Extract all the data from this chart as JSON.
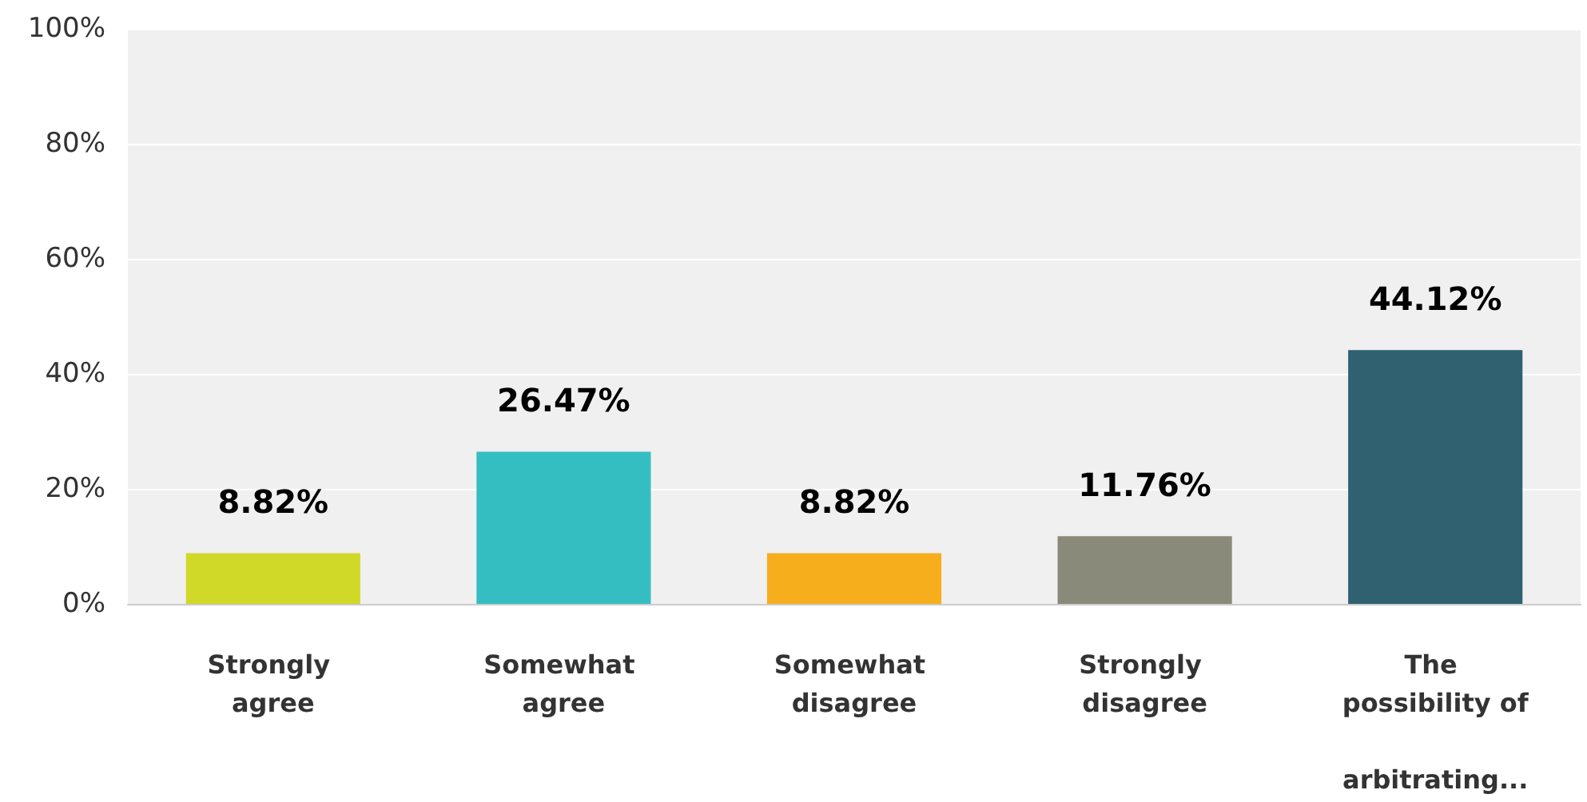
{
  "chart_data": {
    "type": "bar",
    "categories": [
      "Strongly agree",
      "Somewhat agree",
      "Somewhat disagree",
      "Strongly disagree",
      "The possibility of arbitrating..."
    ],
    "values": [
      8.82,
      26.47,
      8.82,
      11.76,
      44.12
    ],
    "colors": [
      "#d0d828",
      "#35bec1",
      "#f6ae1d",
      "#898a7a",
      "#2f6170"
    ],
    "value_labels": [
      "8.82%",
      "26.47%",
      "8.82%",
      "11.76%",
      "44.12%"
    ],
    "ylim": [
      0,
      100
    ],
    "yticks": [
      {
        "value": 0,
        "label": "0%"
      },
      {
        "value": 20,
        "label": "20%"
      },
      {
        "value": 40,
        "label": "40%"
      },
      {
        "value": 60,
        "label": "60%"
      },
      {
        "value": 80,
        "label": "80%"
      },
      {
        "value": 100,
        "label": "100%"
      }
    ],
    "grid": "y"
  }
}
